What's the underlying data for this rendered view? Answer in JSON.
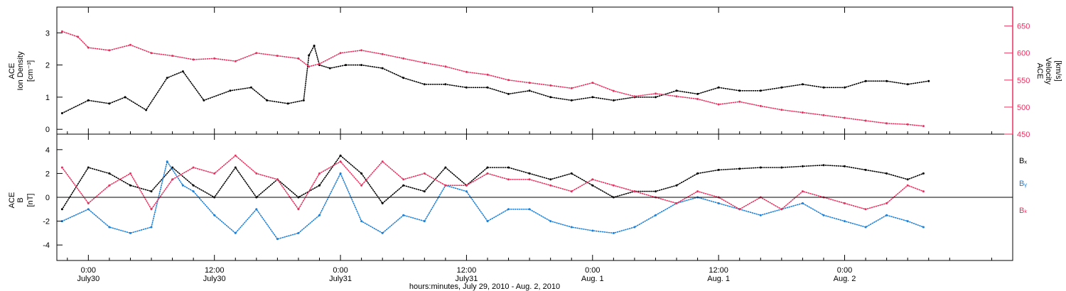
{
  "colors": {
    "black": "#000000",
    "pink": "#e8305f",
    "blue": "#1a7fd8"
  },
  "chart_data": [
    {
      "type": "scatter",
      "panel": "top",
      "left_ylabel_lines": [
        "ACE",
        "Ion Density"
      ],
      "left_ylabel_unit": "[cm⁻³]",
      "right_ylabel_lines": [
        "ACE",
        "Velocity"
      ],
      "right_ylabel_unit": "[km/s]",
      "left_ylim": [
        -0.15,
        3.8
      ],
      "left_yticks": [
        0,
        1,
        2,
        3
      ],
      "right_ylim": [
        450,
        685
      ],
      "right_yticks": [
        450,
        500,
        550,
        600,
        650
      ],
      "series": [
        {
          "axis": "left",
          "color": "black",
          "x_hours": [
            -2.5,
            0,
            2,
            3.5,
            5.5,
            7.5,
            9,
            11,
            13.5,
            15.5,
            17,
            19,
            20.5,
            21,
            21.5,
            22,
            23,
            24.5,
            26,
            28,
            30,
            32,
            34,
            36,
            38,
            40,
            42,
            44,
            46,
            48,
            50,
            52,
            54,
            56,
            58,
            60,
            62,
            64,
            66,
            68,
            70,
            72,
            74,
            76,
            78,
            80
          ],
          "values": [
            0.5,
            0.9,
            0.8,
            1.0,
            0.6,
            1.6,
            1.8,
            0.9,
            1.2,
            1.3,
            0.9,
            0.8,
            0.9,
            2.3,
            2.6,
            2.0,
            1.9,
            2.0,
            2.0,
            1.9,
            1.6,
            1.4,
            1.4,
            1.3,
            1.3,
            1.1,
            1.2,
            1.0,
            0.9,
            1.0,
            0.9,
            1.0,
            1.0,
            1.2,
            1.1,
            1.3,
            1.2,
            1.2,
            1.3,
            1.4,
            1.3,
            1.3,
            1.5,
            1.5,
            1.4,
            1.5
          ]
        },
        {
          "axis": "right",
          "color": "pink",
          "x_hours": [
            -2.5,
            -1,
            0,
            2,
            4,
            6,
            8,
            10,
            12,
            14,
            16,
            18,
            20,
            21,
            22,
            24,
            26,
            28,
            30,
            32,
            34,
            36,
            38,
            40,
            42,
            44,
            46,
            48,
            50,
            52,
            54,
            56,
            58,
            60,
            62,
            64,
            66,
            68,
            70,
            72,
            74,
            76,
            78,
            79.5
          ],
          "values": [
            640,
            630,
            610,
            605,
            615,
            600,
            595,
            588,
            590,
            585,
            600,
            595,
            590,
            575,
            580,
            600,
            605,
            598,
            590,
            582,
            575,
            565,
            560,
            550,
            545,
            540,
            535,
            545,
            530,
            520,
            525,
            520,
            515,
            505,
            510,
            502,
            495,
            490,
            485,
            480,
            475,
            470,
            468,
            465
          ]
        }
      ]
    },
    {
      "type": "scatter",
      "panel": "bottom",
      "ylabel_lines": [
        "ACE",
        "B"
      ],
      "ylabel_unit": "[nT]",
      "ylim": [
        -5.3,
        5.3
      ],
      "yticks": [
        -4,
        -2,
        0,
        2,
        4
      ],
      "zero_line": true,
      "legend": [
        "Bₓ",
        "Bᵧ",
        "Bₖ"
      ],
      "legend_placement": "right",
      "series": [
        {
          "name_index": 0,
          "color": "black",
          "x_hours": [
            -2.5,
            0,
            2,
            4,
            6,
            8,
            10,
            12,
            14,
            16,
            18,
            20,
            22,
            24,
            26,
            28,
            30,
            32,
            34,
            36,
            38,
            40,
            42,
            44,
            46,
            48,
            50,
            52,
            54,
            56,
            58,
            60,
            62,
            64,
            66,
            68,
            70,
            72,
            74,
            76,
            78,
            79.5
          ],
          "values": [
            -1.0,
            2.5,
            2.0,
            1.0,
            0.5,
            2.5,
            1.0,
            0.0,
            2.5,
            0.0,
            1.5,
            0.0,
            1.0,
            3.5,
            2.0,
            -0.5,
            1.0,
            0.5,
            2.5,
            1.0,
            2.5,
            2.5,
            2.0,
            1.5,
            2.0,
            1.0,
            0.0,
            0.5,
            0.5,
            1.0,
            2.0,
            2.3,
            2.4,
            2.5,
            2.5,
            2.6,
            2.7,
            2.6,
            2.3,
            2.0,
            1.5,
            2.0
          ]
        },
        {
          "name_index": 1,
          "color": "blue",
          "x_hours": [
            -2.5,
            0,
            2,
            4,
            6,
            7.5,
            9,
            10,
            12,
            14,
            16,
            18,
            20,
            22,
            24,
            26,
            28,
            30,
            32,
            34,
            36,
            38,
            40,
            42,
            44,
            46,
            48,
            50,
            52,
            54,
            56,
            58,
            60,
            62,
            64,
            66,
            68,
            70,
            72,
            74,
            76,
            78,
            79.5
          ],
          "values": [
            -2.0,
            -1.0,
            -2.5,
            -3.0,
            -2.5,
            3.0,
            1.0,
            0.5,
            -1.5,
            -3.0,
            -1.0,
            -3.5,
            -3.0,
            -1.5,
            2.0,
            -2.0,
            -3.0,
            -1.5,
            -2.0,
            1.0,
            0.5,
            -2.0,
            -1.0,
            -1.0,
            -2.0,
            -2.5,
            -2.8,
            -3.0,
            -2.5,
            -1.5,
            -0.5,
            0.0,
            -0.5,
            -1.0,
            -1.5,
            -1.0,
            -0.5,
            -1.5,
            -2.0,
            -2.5,
            -1.5,
            -2.0,
            -2.5
          ]
        },
        {
          "name_index": 2,
          "color": "pink",
          "x_hours": [
            -2.5,
            0,
            2,
            4,
            6,
            8,
            10,
            12,
            14,
            16,
            18,
            20,
            22,
            24,
            26,
            28,
            30,
            32,
            34,
            36,
            38,
            40,
            42,
            44,
            46,
            48,
            50,
            52,
            54,
            56,
            58,
            60,
            62,
            64,
            66,
            68,
            70,
            72,
            74,
            76,
            78,
            79.5
          ],
          "values": [
            2.5,
            -0.5,
            1.0,
            2.0,
            -1.0,
            1.5,
            2.5,
            2.0,
            3.5,
            2.0,
            1.5,
            -1.0,
            2.0,
            3.0,
            1.0,
            3.0,
            1.5,
            2.0,
            1.0,
            1.0,
            2.0,
            1.5,
            1.5,
            1.0,
            0.5,
            1.5,
            1.0,
            0.5,
            0.0,
            -0.5,
            0.5,
            0.0,
            -1.0,
            0.0,
            -1.0,
            0.5,
            0.0,
            -0.5,
            -1.0,
            -0.5,
            1.0,
            0.5
          ]
        }
      ]
    }
  ],
  "x_axis": {
    "xlim_hours": [
      -3,
      88
    ],
    "ticks": [
      {
        "hours": 0,
        "time": "0:00",
        "date": "July30"
      },
      {
        "hours": 12,
        "time": "12:00",
        "date": "July30"
      },
      {
        "hours": 24,
        "time": "0:00",
        "date": "July31"
      },
      {
        "hours": 36,
        "time": "12:00",
        "date": "July31"
      },
      {
        "hours": 48,
        "time": "0:00",
        "date": "Aug. 1"
      },
      {
        "hours": 60,
        "time": "12:00",
        "date": "Aug. 1"
      },
      {
        "hours": 72,
        "time": "0:00",
        "date": "Aug. 2"
      }
    ],
    "title": "hours:minutes, July 29, 2010 - Aug.  2, 2010"
  }
}
